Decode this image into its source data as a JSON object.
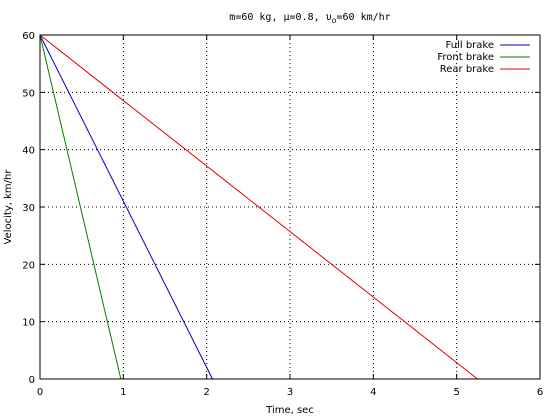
{
  "chart_data": {
    "type": "line",
    "title": {
      "prefix": "m=60 kg, ",
      "mu_symbol": "μ",
      "mid": "=0.8, ",
      "v_symbol": "υ",
      "v_subscript": "o",
      "suffix": "=60 km/hr"
    },
    "xlabel": "Time, sec",
    "ylabel": "Velocity, km/hr",
    "xlim": [
      0,
      6
    ],
    "ylim": [
      0,
      60
    ],
    "x_ticks": [
      0,
      1,
      2,
      3,
      4,
      5,
      6
    ],
    "y_ticks": [
      0,
      10,
      20,
      30,
      40,
      50,
      60
    ],
    "grid": true,
    "legend_position": "top-right",
    "series": [
      {
        "name": "Full brake",
        "color": "#0000cc",
        "x": [
          0,
          2.07
        ],
        "y": [
          60,
          0
        ]
      },
      {
        "name": "Front brake",
        "color": "#008000",
        "x": [
          0,
          0.97
        ],
        "y": [
          60,
          0
        ]
      },
      {
        "name": "Rear brake",
        "color": "#e00000",
        "x": [
          0,
          5.25
        ],
        "y": [
          60,
          0
        ]
      }
    ]
  }
}
